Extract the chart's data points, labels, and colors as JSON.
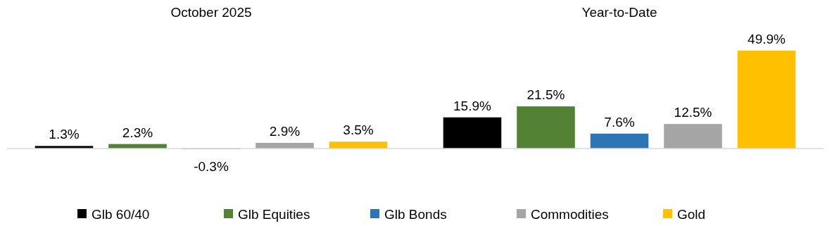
{
  "chart_data": {
    "type": "bar",
    "categories": [
      "October 2025",
      "Year-to-Date"
    ],
    "series": [
      {
        "name": "Glb 60/40",
        "color": "#000000",
        "values": [
          1.3,
          15.9
        ],
        "value_labels": [
          "1.3%",
          "15.9%"
        ]
      },
      {
        "name": "Glb Equities",
        "color": "#548235",
        "values": [
          2.3,
          21.5
        ],
        "value_labels": [
          "2.3%",
          "21.5%"
        ]
      },
      {
        "name": "Glb Bonds",
        "color": "#2e75b6",
        "values": [
          -0.3,
          7.6
        ],
        "value_labels": [
          "-0.3%",
          "7.6%"
        ]
      },
      {
        "name": "Commodities",
        "color": "#a5a5a5",
        "values": [
          2.9,
          12.5
        ],
        "value_labels": [
          "2.9%",
          "12.5%"
        ]
      },
      {
        "name": "Gold",
        "color": "#ffc000",
        "values": [
          3.5,
          49.9
        ],
        "value_labels": [
          "3.5%",
          "49.9%"
        ]
      }
    ],
    "legend": "bottom"
  }
}
